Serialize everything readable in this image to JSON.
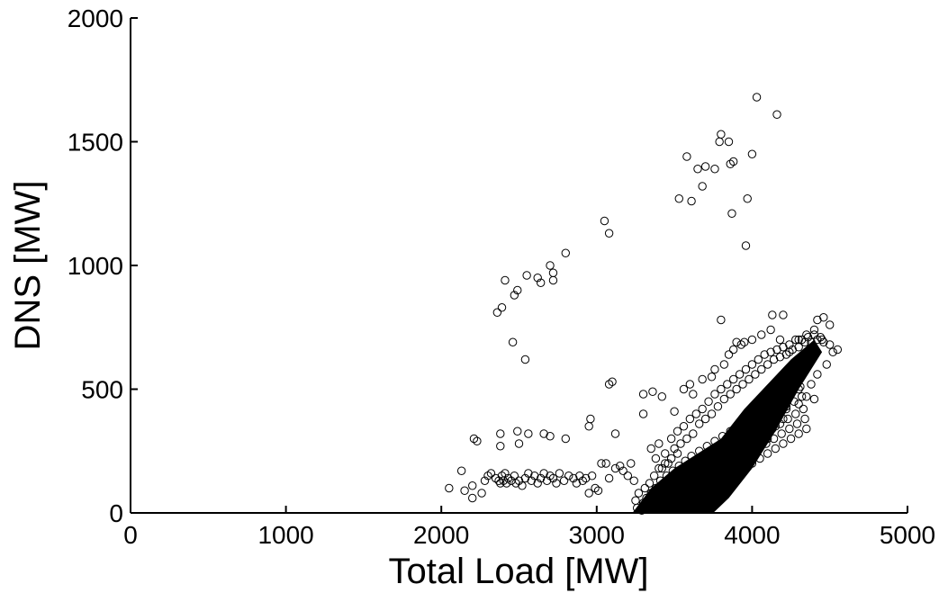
{
  "chart_data": {
    "type": "scatter",
    "title": "",
    "xlabel": "Total Load [MW]",
    "ylabel": "DNS [MW]",
    "xlim": [
      0,
      5000
    ],
    "ylim": [
      0,
      2000
    ],
    "xticks": [
      0,
      1000,
      2000,
      3000,
      4000,
      5000
    ],
    "yticks": [
      0,
      500,
      1000,
      1500,
      2000
    ],
    "xtick_labels": [
      "0",
      "1000",
      "2000",
      "3000",
      "4000",
      "5000"
    ],
    "ytick_labels": [
      "0",
      "500",
      "1000",
      "1500",
      "2000"
    ],
    "grid": false,
    "marker": "open-circle",
    "marker_color": "#000000",
    "series": [
      {
        "values_note_excluded": true,
        "points": [
          [
            2050,
            100
          ],
          [
            2130,
            170
          ],
          [
            2150,
            90
          ],
          [
            2200,
            110
          ],
          [
            2200,
            60
          ],
          [
            2210,
            300
          ],
          [
            2230,
            290
          ],
          [
            2260,
            80
          ],
          [
            2280,
            130
          ],
          [
            2300,
            150
          ],
          [
            2320,
            160
          ],
          [
            2350,
            140
          ],
          [
            2370,
            130
          ],
          [
            2380,
            120
          ],
          [
            2390,
            150
          ],
          [
            2400,
            130
          ],
          [
            2410,
            160
          ],
          [
            2420,
            120
          ],
          [
            2430,
            140
          ],
          [
            2450,
            130
          ],
          [
            2470,
            150
          ],
          [
            2480,
            120
          ],
          [
            2500,
            130
          ],
          [
            2520,
            110
          ],
          [
            2540,
            140
          ],
          [
            2560,
            160
          ],
          [
            2580,
            130
          ],
          [
            2600,
            150
          ],
          [
            2620,
            120
          ],
          [
            2640,
            140
          ],
          [
            2660,
            160
          ],
          [
            2680,
            130
          ],
          [
            2700,
            150
          ],
          [
            2720,
            140
          ],
          [
            2740,
            120
          ],
          [
            2760,
            160
          ],
          [
            2790,
            130
          ],
          [
            2820,
            150
          ],
          [
            2850,
            140
          ],
          [
            2870,
            120
          ],
          [
            2890,
            150
          ],
          [
            2910,
            130
          ],
          [
            2930,
            140
          ],
          [
            2950,
            80
          ],
          [
            2970,
            150
          ],
          [
            2990,
            100
          ],
          [
            3010,
            90
          ],
          [
            3030,
            200
          ],
          [
            3060,
            200
          ],
          [
            3080,
            140
          ],
          [
            3120,
            180
          ],
          [
            3150,
            190
          ],
          [
            3170,
            170
          ],
          [
            3200,
            150
          ],
          [
            3220,
            200
          ],
          [
            3240,
            130
          ],
          [
            2380,
            320
          ],
          [
            2380,
            270
          ],
          [
            2490,
            330
          ],
          [
            2500,
            280
          ],
          [
            2560,
            320
          ],
          [
            2660,
            320
          ],
          [
            2700,
            310
          ],
          [
            2800,
            300
          ],
          [
            2960,
            380
          ],
          [
            2950,
            350
          ],
          [
            3120,
            320
          ],
          [
            2360,
            810
          ],
          [
            2390,
            830
          ],
          [
            2410,
            940
          ],
          [
            2470,
            880
          ],
          [
            2490,
            900
          ],
          [
            2550,
            960
          ],
          [
            2620,
            950
          ],
          [
            2640,
            930
          ],
          [
            2700,
            1000
          ],
          [
            2720,
            970
          ],
          [
            2720,
            940
          ],
          [
            2800,
            1050
          ],
          [
            3050,
            1180
          ],
          [
            3080,
            1130
          ],
          [
            2460,
            690
          ],
          [
            2540,
            620
          ],
          [
            3080,
            520
          ],
          [
            3100,
            530
          ],
          [
            3530,
            1270
          ],
          [
            3580,
            1440
          ],
          [
            3610,
            1260
          ],
          [
            3650,
            1390
          ],
          [
            3680,
            1320
          ],
          [
            3700,
            1400
          ],
          [
            3760,
            1390
          ],
          [
            3800,
            1530
          ],
          [
            3790,
            1500
          ],
          [
            3850,
            1500
          ],
          [
            3860,
            1410
          ],
          [
            3880,
            1420
          ],
          [
            3870,
            1210
          ],
          [
            3970,
            1270
          ],
          [
            3960,
            1080
          ],
          [
            4000,
            1450
          ],
          [
            4030,
            1680
          ],
          [
            4160,
            1610
          ],
          [
            3800,
            780
          ],
          [
            3930,
            680
          ],
          [
            4130,
            800
          ],
          [
            4200,
            800
          ],
          [
            4420,
            780
          ],
          [
            4460,
            790
          ],
          [
            4500,
            760
          ],
          [
            3300,
            480
          ],
          [
            3300,
            400
          ],
          [
            3360,
            490
          ],
          [
            3420,
            470
          ],
          [
            3500,
            410
          ],
          [
            3560,
            500
          ],
          [
            3600,
            520
          ],
          [
            3620,
            480
          ],
          [
            3680,
            540
          ],
          [
            3740,
            550
          ],
          [
            3760,
            580
          ],
          [
            3820,
            600
          ],
          [
            3850,
            640
          ],
          [
            3880,
            660
          ],
          [
            3900,
            690
          ],
          [
            3950,
            690
          ],
          [
            4000,
            700
          ],
          [
            4060,
            720
          ],
          [
            4120,
            740
          ],
          [
            4180,
            700
          ],
          [
            4240,
            650
          ],
          [
            4300,
            700
          ],
          [
            4350,
            720
          ],
          [
            4400,
            740
          ],
          [
            4450,
            700
          ],
          [
            4500,
            680
          ],
          [
            4550,
            660
          ],
          [
            3350,
            260
          ],
          [
            3380,
            220
          ],
          [
            3400,
            280
          ],
          [
            3420,
            180
          ],
          [
            3440,
            240
          ],
          [
            3460,
            200
          ],
          [
            3480,
            300
          ],
          [
            3500,
            260
          ],
          [
            3520,
            330
          ],
          [
            3540,
            280
          ],
          [
            3560,
            350
          ],
          [
            3580,
            300
          ],
          [
            3600,
            380
          ],
          [
            3620,
            320
          ],
          [
            3640,
            400
          ],
          [
            3660,
            360
          ],
          [
            3680,
            420
          ],
          [
            3700,
            380
          ],
          [
            3720,
            450
          ],
          [
            3740,
            400
          ],
          [
            3760,
            480
          ],
          [
            3780,
            430
          ],
          [
            3800,
            500
          ],
          [
            3820,
            460
          ],
          [
            3840,
            520
          ],
          [
            3860,
            480
          ],
          [
            3880,
            540
          ],
          [
            3900,
            500
          ],
          [
            3920,
            560
          ],
          [
            3940,
            520
          ],
          [
            3960,
            580
          ],
          [
            3980,
            540
          ],
          [
            4000,
            600
          ],
          [
            4020,
            560
          ],
          [
            4040,
            620
          ],
          [
            4060,
            580
          ],
          [
            4080,
            640
          ],
          [
            4100,
            600
          ],
          [
            4120,
            650
          ],
          [
            4140,
            620
          ],
          [
            4160,
            660
          ],
          [
            4180,
            630
          ],
          [
            4200,
            670
          ],
          [
            4220,
            640
          ],
          [
            4240,
            680
          ],
          [
            4260,
            660
          ],
          [
            4280,
            700
          ],
          [
            4300,
            670
          ],
          [
            4320,
            700
          ],
          [
            4340,
            690
          ],
          [
            4360,
            710
          ],
          [
            4380,
            690
          ],
          [
            4400,
            720
          ],
          [
            4420,
            700
          ],
          [
            4440,
            710
          ],
          [
            4460,
            690
          ],
          [
            4220,
            420
          ],
          [
            4250,
            480
          ],
          [
            4300,
            500
          ],
          [
            4350,
            470
          ],
          [
            4380,
            520
          ],
          [
            4420,
            560
          ],
          [
            4480,
            600
          ],
          [
            4520,
            650
          ],
          [
            4150,
            350
          ],
          [
            4100,
            300
          ],
          [
            4050,
            280
          ],
          [
            4200,
            380
          ],
          [
            4300,
            440
          ],
          [
            4400,
            460
          ],
          [
            3250,
            50
          ],
          [
            3260,
            20
          ],
          [
            3270,
            80
          ],
          [
            3290,
            10
          ],
          [
            3300,
            40
          ],
          [
            3310,
            100
          ],
          [
            3320,
            60
          ],
          [
            3330,
            30
          ],
          [
            3340,
            120
          ],
          [
            3350,
            80
          ],
          [
            3360,
            40
          ],
          [
            3370,
            150
          ],
          [
            3380,
            100
          ],
          [
            3390,
            60
          ],
          [
            3400,
            180
          ],
          [
            3410,
            130
          ],
          [
            3420,
            90
          ],
          [
            3430,
            50
          ],
          [
            3440,
            200
          ],
          [
            3450,
            150
          ],
          [
            3460,
            110
          ],
          [
            3470,
            70
          ],
          [
            3480,
            220
          ],
          [
            3490,
            170
          ],
          [
            3500,
            130
          ],
          [
            3510,
            90
          ],
          [
            3520,
            240
          ],
          [
            3530,
            190
          ],
          [
            3540,
            150
          ],
          [
            3550,
            100
          ],
          [
            3560,
            60
          ],
          [
            3570,
            210
          ],
          [
            3580,
            170
          ],
          [
            3590,
            120
          ],
          [
            3600,
            80
          ],
          [
            3610,
            230
          ],
          [
            3620,
            190
          ],
          [
            3630,
            140
          ],
          [
            3640,
            100
          ],
          [
            3650,
            60
          ],
          [
            3660,
            250
          ],
          [
            3670,
            210
          ],
          [
            3680,
            160
          ],
          [
            3690,
            120
          ],
          [
            3700,
            80
          ],
          [
            3710,
            270
          ],
          [
            3720,
            230
          ],
          [
            3730,
            180
          ],
          [
            3740,
            140
          ],
          [
            3750,
            100
          ],
          [
            3760,
            290
          ],
          [
            3770,
            250
          ],
          [
            3780,
            200
          ],
          [
            3790,
            160
          ],
          [
            3800,
            120
          ],
          [
            3810,
            310
          ],
          [
            3820,
            270
          ],
          [
            3830,
            220
          ],
          [
            3840,
            180
          ],
          [
            3850,
            140
          ],
          [
            3860,
            330
          ],
          [
            3870,
            290
          ],
          [
            3880,
            240
          ],
          [
            3890,
            200
          ],
          [
            3900,
            160
          ],
          [
            3910,
            350
          ],
          [
            3920,
            310
          ],
          [
            3930,
            260
          ],
          [
            3940,
            220
          ],
          [
            3950,
            180
          ],
          [
            3960,
            370
          ],
          [
            3970,
            330
          ],
          [
            3980,
            280
          ],
          [
            3990,
            240
          ],
          [
            4000,
            200
          ],
          [
            4010,
            390
          ],
          [
            4020,
            350
          ],
          [
            4030,
            300
          ],
          [
            4040,
            260
          ],
          [
            4050,
            220
          ],
          [
            4060,
            410
          ],
          [
            4070,
            370
          ],
          [
            4080,
            320
          ],
          [
            4090,
            280
          ],
          [
            4100,
            240
          ],
          [
            4110,
            430
          ],
          [
            4120,
            390
          ],
          [
            4130,
            340
          ],
          [
            4140,
            300
          ],
          [
            4150,
            260
          ],
          [
            4160,
            450
          ],
          [
            4170,
            410
          ],
          [
            4180,
            360
          ],
          [
            4190,
            320
          ],
          [
            4200,
            280
          ],
          [
            4210,
            470
          ],
          [
            4220,
            430
          ],
          [
            4230,
            380
          ],
          [
            4240,
            340
          ],
          [
            4250,
            300
          ],
          [
            4260,
            490
          ],
          [
            4270,
            450
          ],
          [
            4280,
            400
          ],
          [
            4290,
            360
          ],
          [
            4300,
            320
          ],
          [
            4310,
            510
          ],
          [
            4320,
            470
          ],
          [
            4330,
            420
          ],
          [
            4340,
            380
          ],
          [
            4350,
            340
          ]
        ]
      }
    ]
  }
}
